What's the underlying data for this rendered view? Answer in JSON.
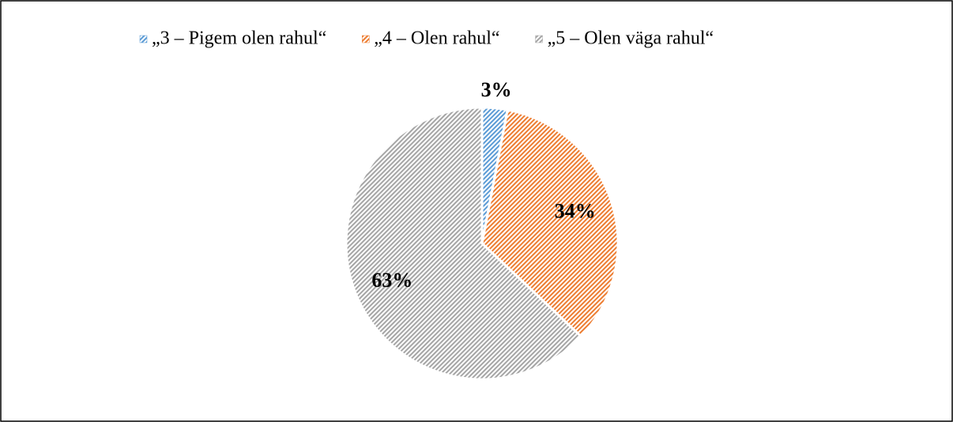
{
  "chart_data": {
    "type": "pie",
    "categories": [
      "„3 – Pigem olen rahul“",
      "„4 – Olen rahul“",
      "„5 – Olen väga rahul“"
    ],
    "values": [
      3,
      34,
      63
    ],
    "value_labels": [
      "3%",
      "34%",
      "63%"
    ],
    "colors": [
      "#5b9bd5",
      "#ed7d31",
      "#a5a5a5"
    ],
    "legend": "top"
  }
}
